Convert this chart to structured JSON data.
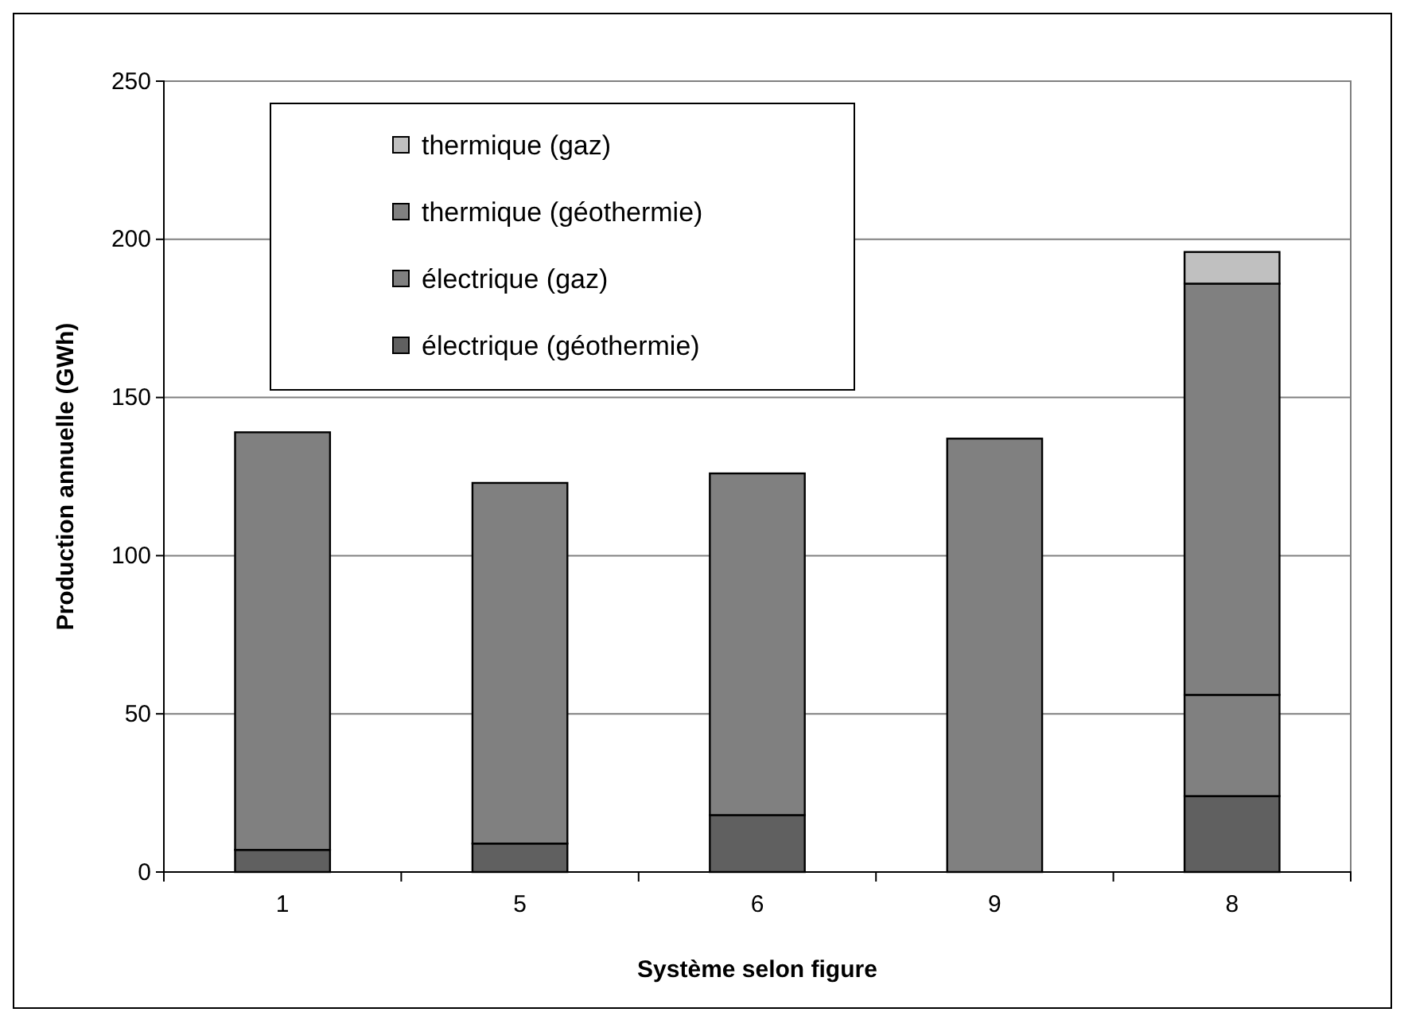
{
  "chart_data": {
    "type": "bar",
    "stacked": true,
    "xlabel": "Système selon figure",
    "ylabel": "Production annuelle (GWh)",
    "categories": [
      "1",
      "5",
      "6",
      "9",
      "8"
    ],
    "series": [
      {
        "name": "électrique (géothermie)",
        "color": "#606060",
        "values": [
          7,
          9,
          18,
          null,
          24
        ]
      },
      {
        "name": "électrique (gaz)",
        "color": "#808080",
        "values": [
          null,
          null,
          null,
          null,
          32
        ]
      },
      {
        "name": "thermique (géothermie)",
        "color": "#808080",
        "values": [
          132,
          114,
          108,
          137,
          130
        ]
      },
      {
        "name": "thermique (gaz)",
        "color": "#c0c0c0",
        "values": [
          null,
          null,
          null,
          null,
          10
        ]
      }
    ],
    "ylim": [
      0,
      250
    ],
    "yticks": [
      0,
      50,
      100,
      150,
      200,
      250
    ],
    "grid": "y",
    "legend": "top left"
  }
}
